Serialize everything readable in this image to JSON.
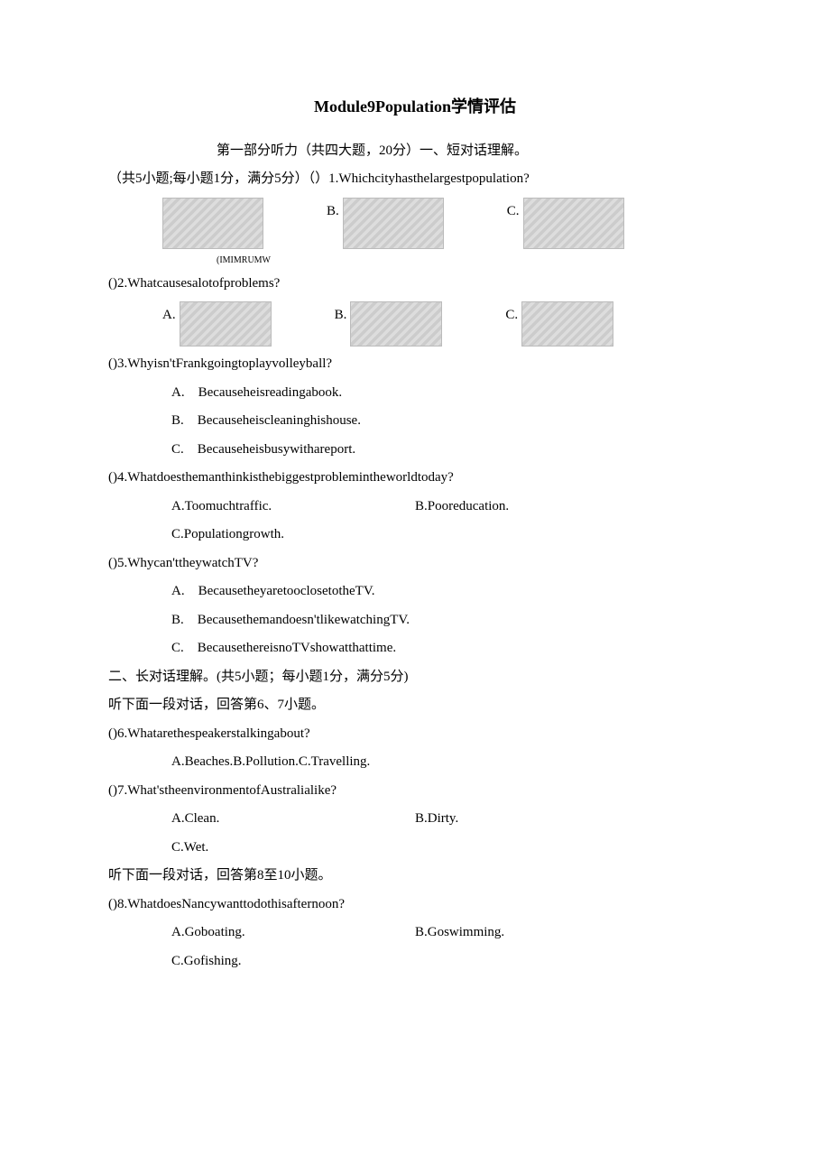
{
  "title": "Module9Population学情评估",
  "part1_header": "第一部分听力（共四大题，20分）一、短对话理解。",
  "section1_sub": "（共5小题;每小题1分，满分5分）（）1.Whichcityhasthelargestpopulation?",
  "q1_labels": {
    "b": "B.",
    "c": "C."
  },
  "q1_note": "(IMIMRUMW",
  "q2": {
    "stem": "()2.Whatcausesalotofproblems?",
    "a": "A.",
    "b": "B.",
    "c": "C."
  },
  "q3": {
    "stem": "()3.Whyisn'tFrankgoingtoplayvolleyball?",
    "a": "A.　Becauseheisreadingabook.",
    "b": "B.　Becauseheiscleaninghishouse.",
    "c": "C.　Becauseheisbusywithareport."
  },
  "q4": {
    "stem": "()4.Whatdoesthemanthinkisthebiggestproblemintheworldtoday?",
    "a": "A.Toomuchtraffic.",
    "b": "B.Pooreducation.",
    "c": "C.Populationgrowth."
  },
  "q5": {
    "stem": "()5.Whycan'ttheywatchTV?",
    "a": "A.　BecausetheyaretooclosetotheTV.",
    "b": "B.　Becausethemandoesn'tlikewatchingTV.",
    "c": "C.　BecausethereisnoTVshowatthattime."
  },
  "section2_header": "二、长对话理解。(共5小题；每小题1分，满分5分)",
  "dialog1": "听下面一段对话，回答第6、7小题。",
  "q6": {
    "stem": "()6.Whatarethespeakerstalkingabout?",
    "opts": "A.Beaches.B.Pollution.C.Travelling."
  },
  "q7": {
    "stem": "()7.What'stheenvironmentofAustralialike?",
    "a": "A.Clean.",
    "b": "B.Dirty.",
    "c": "C.Wet."
  },
  "dialog2": "听下面一段对话，回答第8至10小题。",
  "q8": {
    "stem": "()8.WhatdoesNancywanttodothisafternoon?",
    "a": "A.Goboating.",
    "b": "B.Goswimming.",
    "c": "C.Gofishing."
  }
}
